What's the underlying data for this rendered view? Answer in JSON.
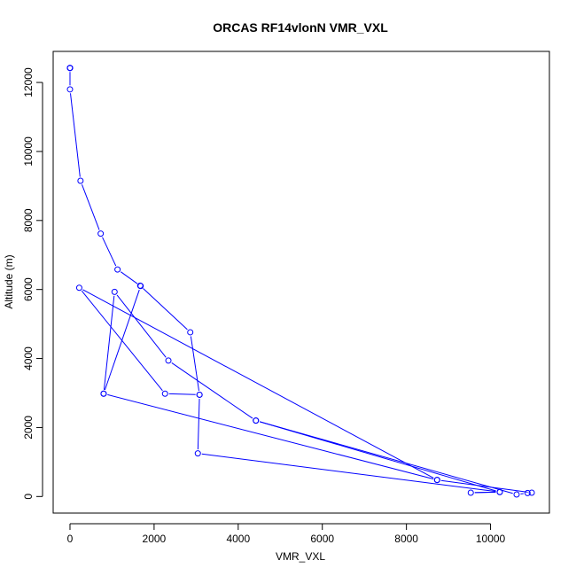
{
  "chart_data": {
    "type": "line",
    "title": "ORCAS RF14vlonN VMR_VXL",
    "xlabel": "VMR_VXL",
    "ylabel": "Altitude (m)",
    "xlim": [
      -400,
      11400
    ],
    "ylim": [
      -480,
      12900
    ],
    "xticks": [
      0,
      2000,
      4000,
      6000,
      8000,
      10000
    ],
    "xtick_labels": [
      "0",
      "2000",
      "4000",
      "6000",
      "8000",
      "10000"
    ],
    "yticks": [
      0,
      2000,
      4000,
      6000,
      8000,
      10000,
      12000
    ],
    "ytick_labels": [
      "0",
      "2000",
      "4000",
      "6000",
      "8000",
      "10000",
      "12000"
    ],
    "grid": false,
    "marker": "open-circle",
    "color": "#0000ff",
    "series": [
      {
        "points": [
          [
            0,
            12420
          ],
          [
            0,
            12420
          ],
          [
            0,
            12420
          ],
          [
            0,
            12420
          ],
          [
            0,
            11800
          ],
          [
            250,
            9150
          ],
          [
            730,
            7620
          ],
          [
            1130,
            6580
          ],
          [
            1680,
            6100
          ],
          [
            800,
            2980
          ],
          [
            1060,
            5930
          ],
          [
            2340,
            3940
          ],
          [
            4420,
            2200
          ],
          [
            10620,
            60
          ],
          [
            10880,
            100
          ],
          [
            10980,
            110
          ],
          [
            8730,
            480
          ],
          [
            220,
            6050
          ],
          [
            2260,
            2980
          ],
          [
            3080,
            2950
          ],
          [
            2860,
            4760
          ],
          [
            1670,
            6110
          ]
        ]
      },
      {
        "points": [
          [
            4420,
            2200
          ],
          [
            10220,
            130
          ],
          [
            9530,
            110
          ],
          [
            10220,
            130
          ],
          [
            3040,
            1250
          ],
          [
            3080,
            2950
          ]
        ]
      },
      {
        "points": [
          [
            800,
            2980
          ],
          [
            8730,
            480
          ]
        ]
      }
    ]
  }
}
